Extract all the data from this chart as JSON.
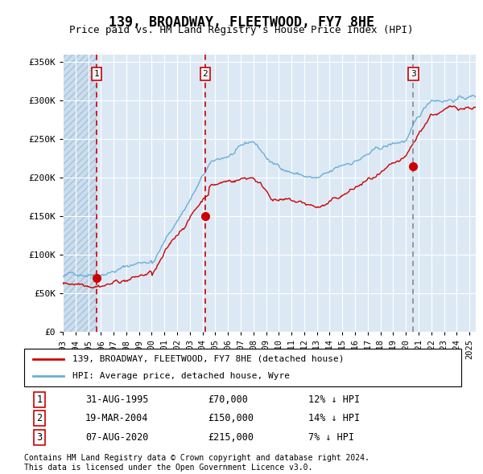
{
  "title": "139, BROADWAY, FLEETWOOD, FY7 8HE",
  "subtitle": "Price paid vs. HM Land Registry's House Price Index (HPI)",
  "legend_line1": "139, BROADWAY, FLEETWOOD, FY7 8HE (detached house)",
  "legend_line2": "HPI: Average price, detached house, Wyre",
  "transactions": [
    {
      "num": 1,
      "date": "31-AUG-1995",
      "price": 70000,
      "hpi_diff": "12% ↓ HPI",
      "date_val": 1995.667
    },
    {
      "num": 2,
      "date": "19-MAR-2004",
      "price": 150000,
      "hpi_diff": "14% ↓ HPI",
      "date_val": 2004.208
    },
    {
      "num": 3,
      "date": "07-AUG-2020",
      "price": 215000,
      "hpi_diff": "7% ↓ HPI",
      "date_val": 2020.583
    }
  ],
  "hpi_color": "#6baed6",
  "price_color": "#cc0000",
  "plot_bg": "#dce9f5",
  "ylim": [
    0,
    360000
  ],
  "yticks": [
    0,
    50000,
    100000,
    150000,
    200000,
    250000,
    300000,
    350000
  ],
  "xstart": 1993.0,
  "xend": 2025.5,
  "footnote1": "Contains HM Land Registry data © Crown copyright and database right 2024.",
  "footnote2": "This data is licensed under the Open Government Licence v3.0.",
  "row_data": [
    [
      "1",
      "31-AUG-1995",
      "£70,000",
      "12% ↓ HPI"
    ],
    [
      "2",
      "19-MAR-2004",
      "£150,000",
      "14% ↓ HPI"
    ],
    [
      "3",
      "07-AUG-2020",
      "£215,000",
      "7% ↓ HPI"
    ]
  ]
}
